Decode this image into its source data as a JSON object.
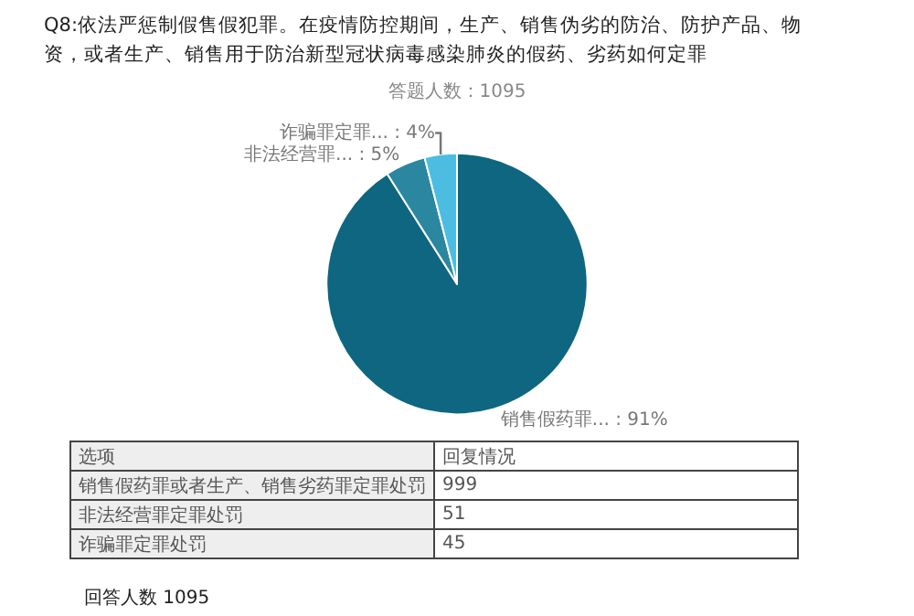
{
  "chart_data": {
    "type": "pie",
    "title": "Q8:依法严惩制假售假犯罪。在疫情防控期间，生产、销售伪劣的防治、防护产品、物资，或者生产、销售用于防治新型冠状病毒感染肺炎的假药、劣药如何定罪",
    "subtitle": "答题人数：1095",
    "categories": [
      "销售假药罪...",
      "非法经营罪...",
      "诈骗罪定罪..."
    ],
    "values": [
      91,
      5,
      4
    ],
    "value_labels": [
      "91%",
      "5%",
      "4%"
    ],
    "colors": [
      "#0e6680",
      "#2b87a0",
      "#4cbde0"
    ],
    "legend": false,
    "annotations": [
      "选项",
      "回复情况",
      "销售假药罪或者生产、销售劣药罪定罪处罚",
      "999",
      "非法经营罪定罪处罚",
      "51",
      "诈骗罪定罪处罚",
      "45",
      "回答人数 1095"
    ]
  }
}
